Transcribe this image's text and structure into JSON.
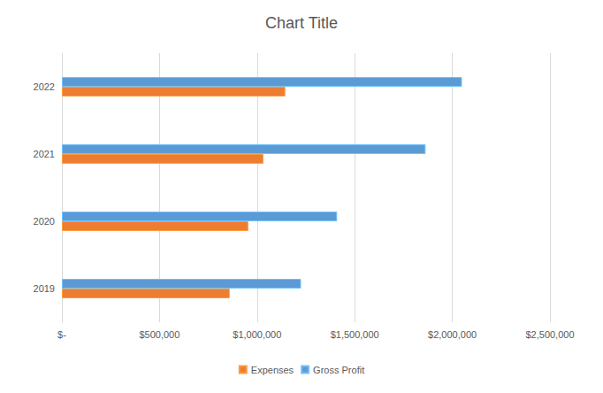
{
  "chart_data": {
    "type": "bar",
    "title": "Chart Title",
    "orientation": "horizontal",
    "categories": [
      "2019",
      "2020",
      "2021",
      "2022"
    ],
    "series": [
      {
        "name": "Expenses",
        "color": "#ed7d31",
        "values": [
          859700,
          954885,
          1032143,
          1144316
        ]
      },
      {
        "name": "Gross Profit",
        "color": "#5b9bd5",
        "values": [
          1225000,
          1410000,
          1863000,
          2049300
        ]
      }
    ],
    "xlim": [
      0,
      2500000
    ],
    "xticks": [
      {
        "value": 0,
        "label": "$-"
      },
      {
        "value": 500000,
        "label": "$500,000"
      },
      {
        "value": 1000000,
        "label": "$1,000,000"
      },
      {
        "value": 1500000,
        "label": "$1,500,000"
      },
      {
        "value": 2000000,
        "label": "$2,000,000"
      },
      {
        "value": 2500000,
        "label": "$2,500,000"
      }
    ],
    "grid": true,
    "legend": "bottom"
  }
}
